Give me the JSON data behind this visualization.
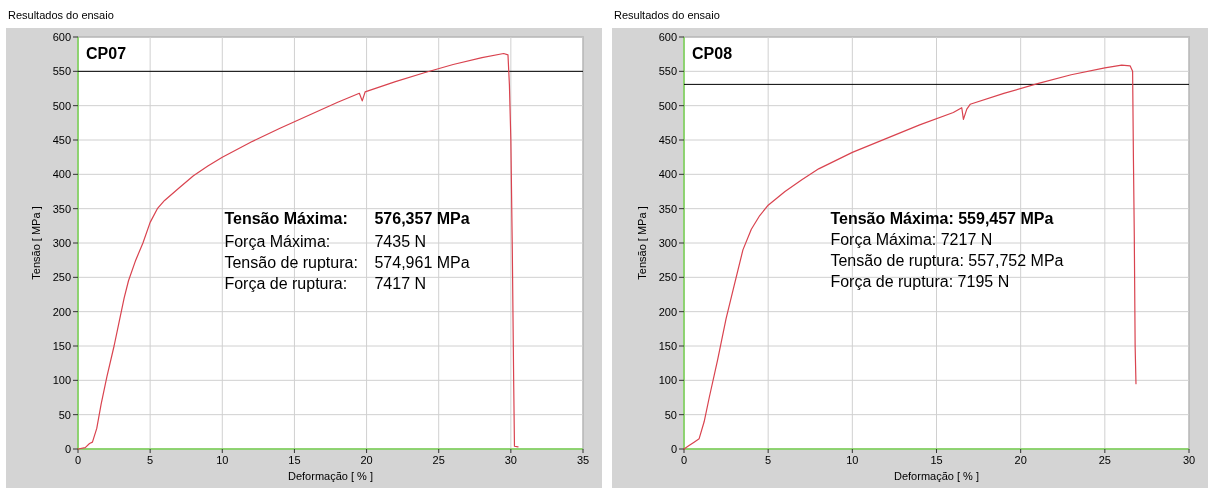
{
  "chart_data": [
    {
      "type": "line",
      "title": "Resultados do ensaio",
      "xlabel": "Deformação [ % ]",
      "ylabel": "Tensão [ MPa ]",
      "xlim": [
        0,
        35
      ],
      "xticks": [
        0,
        5,
        10,
        15,
        20,
        25,
        30,
        35
      ],
      "ylim": [
        0,
        600
      ],
      "yticks": [
        0,
        50,
        100,
        150,
        200,
        250,
        300,
        350,
        400,
        450,
        500,
        550,
        600
      ],
      "grid": true,
      "ref_lines": [
        {
          "axis": "y",
          "value": 550,
          "color": "#000000"
        }
      ],
      "annotations": [
        "CP07",
        "Tensão Máxima:",
        "576,357 MPa",
        "Força Máxima:",
        "7435 N",
        "Tensão de ruptura:",
        "574,961 MPa",
        "Força de ruptura:",
        "7417 N"
      ],
      "series": [
        {
          "color": "#d9434f",
          "x": [
            0,
            0.5,
            0.8,
            1.0,
            1.3,
            1.6,
            2.0,
            2.5,
            2.8,
            3.2,
            3.5,
            4.0,
            4.5,
            5.0,
            5.5,
            6.0,
            7,
            8,
            9,
            10,
            12,
            14,
            16,
            18,
            19.5,
            19.7,
            19.9,
            22,
            24,
            26,
            28,
            29.5,
            29.8,
            29.9,
            30.0,
            30.1,
            30.2,
            30.25,
            30.5
          ],
          "values": [
            0,
            2,
            8,
            10,
            30,
            65,
            105,
            150,
            180,
            220,
            245,
            275,
            300,
            330,
            350,
            362,
            380,
            398,
            412,
            425,
            447,
            467,
            486,
            505,
            518,
            507,
            520,
            535,
            548,
            560,
            570,
            576,
            574,
            530,
            450,
            290,
            90,
            4,
            3
          ]
        }
      ]
    },
    {
      "type": "line",
      "title": "Resultados do ensaio",
      "xlabel": "Deformação [ % ]",
      "ylabel": "Tensão [ MPa ]",
      "xlim": [
        0,
        30
      ],
      "xticks": [
        0,
        5,
        10,
        15,
        20,
        25,
        30
      ],
      "ylim": [
        0,
        600
      ],
      "yticks": [
        0,
        50,
        100,
        150,
        200,
        250,
        300,
        350,
        400,
        450,
        500,
        550,
        600
      ],
      "grid": true,
      "ref_lines": [
        {
          "axis": "y",
          "value": 531,
          "color": "#000000"
        }
      ],
      "annotations": [
        "CP08",
        "Tensão Máxima: 559,457 MPa",
        "Força Máxima: 7217 N",
        "Tensão de ruptura: 557,752 MPa",
        "Força de ruptura: 7195 N"
      ],
      "series": [
        {
          "color": "#d9434f",
          "x": [
            0,
            0.3,
            0.6,
            0.9,
            1.2,
            1.5,
            2,
            2.5,
            3,
            3.5,
            4,
            4.5,
            5,
            6,
            7,
            8,
            10,
            12,
            14,
            16,
            16.5,
            16.6,
            16.8,
            17,
            19,
            21,
            23,
            25,
            26,
            26.5,
            26.65,
            26.7,
            26.75,
            26.8,
            26.85
          ],
          "values": [
            0,
            5,
            10,
            15,
            40,
            75,
            130,
            190,
            240,
            290,
            320,
            340,
            355,
            375,
            392,
            408,
            432,
            452,
            472,
            490,
            497,
            480,
            495,
            502,
            518,
            532,
            545,
            555,
            559,
            558,
            550,
            420,
            310,
            150,
            95
          ]
        }
      ]
    }
  ]
}
